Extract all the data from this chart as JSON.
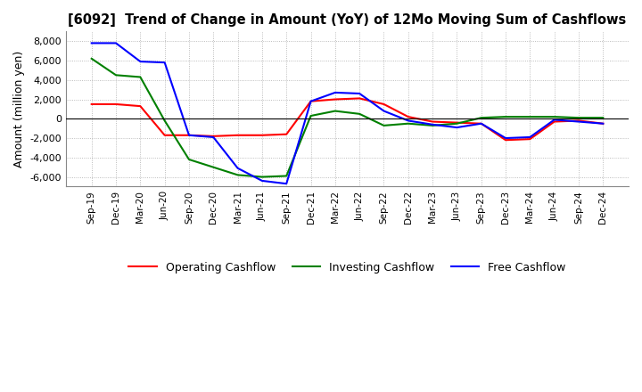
{
  "title": "[6092]  Trend of Change in Amount (YoY) of 12Mo Moving Sum of Cashflows",
  "ylabel": "Amount (million yen)",
  "ylim": [
    -7000,
    9000
  ],
  "yticks": [
    -6000,
    -4000,
    -2000,
    0,
    2000,
    4000,
    6000,
    8000
  ],
  "x_labels": [
    "Sep-19",
    "Dec-19",
    "Mar-20",
    "Jun-20",
    "Sep-20",
    "Dec-20",
    "Mar-21",
    "Jun-21",
    "Sep-21",
    "Dec-21",
    "Mar-22",
    "Jun-22",
    "Sep-22",
    "Dec-22",
    "Mar-23",
    "Jun-23",
    "Sep-23",
    "Dec-23",
    "Mar-24",
    "Jun-24",
    "Sep-24",
    "Dec-24"
  ],
  "operating": [
    1500,
    1500,
    1300,
    -1700,
    -1700,
    -1800,
    -1700,
    -1700,
    -1600,
    1800,
    2000,
    2100,
    1500,
    200,
    -300,
    -400,
    -500,
    -2200,
    -2100,
    -300,
    -200,
    -500
  ],
  "investing": [
    6200,
    4500,
    4300,
    -200,
    -4200,
    -5000,
    -5800,
    -6000,
    -5900,
    300,
    800,
    500,
    -700,
    -500,
    -700,
    -500,
    100,
    200,
    200,
    200,
    100,
    100
  ],
  "free": [
    7800,
    7800,
    5900,
    5800,
    -1700,
    -1900,
    -5100,
    -6400,
    -6700,
    1800,
    2700,
    2600,
    800,
    -200,
    -600,
    -900,
    -500,
    -2000,
    -1900,
    -100,
    -300,
    -500
  ],
  "colors": {
    "operating": "#ff0000",
    "investing": "#008000",
    "free": "#0000ff"
  },
  "legend_labels": [
    "Operating Cashflow",
    "Investing Cashflow",
    "Free Cashflow"
  ],
  "background_color": "#ffffff",
  "grid_color": "#aaaaaa"
}
